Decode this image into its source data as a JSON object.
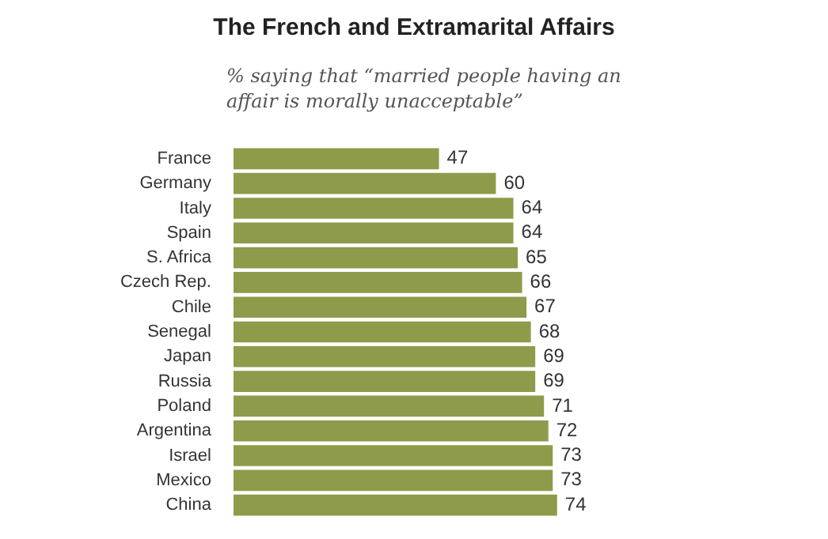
{
  "chart_data": {
    "type": "bar",
    "orientation": "horizontal",
    "title": "The French and Extramarital Affairs",
    "subtitle": "% saying that “married people having an affair is morally unacceptable”",
    "categories": [
      "France",
      "Germany",
      "Italy",
      "Spain",
      "S. Africa",
      "Czech Rep.",
      "Chile",
      "Senegal",
      "Japan",
      "Russia",
      "Poland",
      "Argentina",
      "Israel",
      "Mexico",
      "China"
    ],
    "values": [
      47,
      60,
      64,
      64,
      65,
      66,
      67,
      68,
      69,
      69,
      71,
      72,
      73,
      73,
      74
    ],
    "color": "#8e9b4a",
    "data_labels": true
  }
}
